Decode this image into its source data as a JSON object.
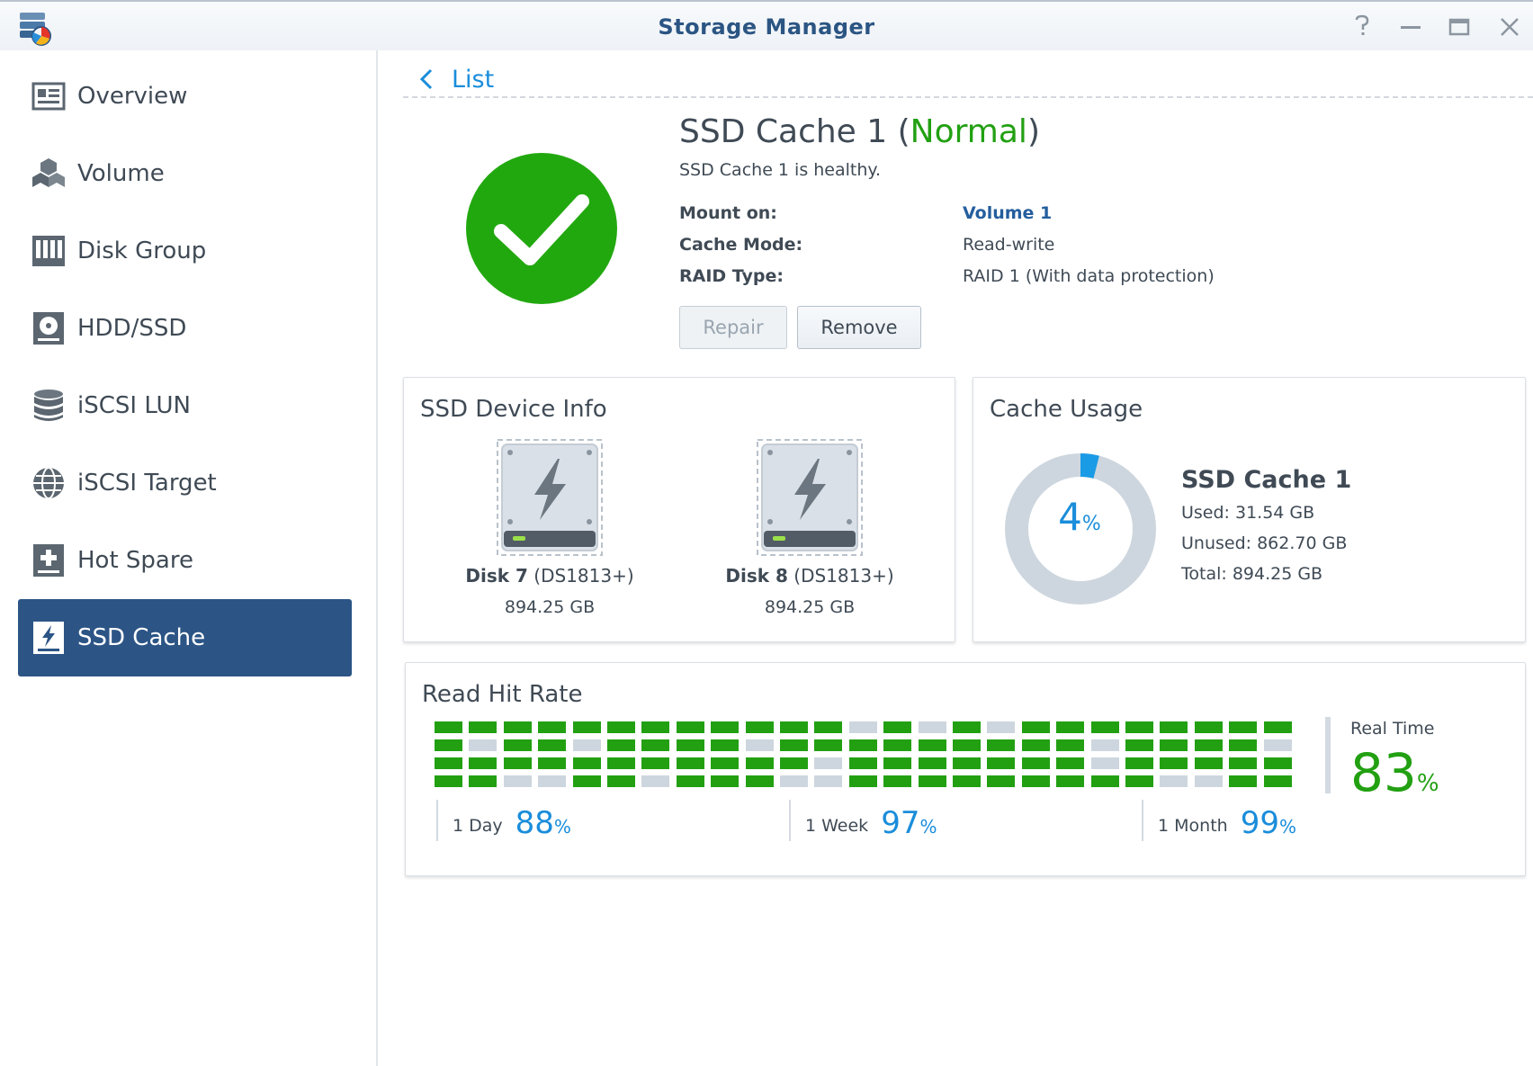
{
  "window": {
    "title": "Storage Manager"
  },
  "sidebar": {
    "items": [
      {
        "label": "Overview",
        "icon": "overview-icon"
      },
      {
        "label": "Volume",
        "icon": "volume-icon"
      },
      {
        "label": "Disk Group",
        "icon": "disk-group-icon"
      },
      {
        "label": "HDD/SSD",
        "icon": "hdd-ssd-icon"
      },
      {
        "label": "iSCSI LUN",
        "icon": "iscsi-lun-icon"
      },
      {
        "label": "iSCSI Target",
        "icon": "iscsi-target-icon"
      },
      {
        "label": "Hot Spare",
        "icon": "hot-spare-icon"
      },
      {
        "label": "SSD Cache",
        "icon": "ssd-cache-icon",
        "active": true
      }
    ]
  },
  "header": {
    "back_label": "List"
  },
  "cache": {
    "name": "SSD Cache 1",
    "open_paren": "(",
    "status": "Normal",
    "close_paren": ")",
    "health_text": "SSD Cache 1 is healthy.",
    "mount_label": "Mount on:",
    "mount_value": "Volume 1",
    "mode_label": "Cache Mode:",
    "mode_value": "Read-write",
    "raid_label": "RAID Type:",
    "raid_value": "RAID 1 (With data protection)",
    "repair_label": "Repair",
    "remove_label": "Remove"
  },
  "device_info": {
    "title": "SSD Device Info",
    "disks": [
      {
        "name": "Disk 7",
        "model": "(DS1813+)",
        "size": "894.25 GB"
      },
      {
        "name": "Disk 8",
        "model": "(DS1813+)",
        "size": "894.25 GB"
      }
    ]
  },
  "usage": {
    "title": "Cache Usage",
    "name": "SSD Cache 1",
    "percent": "4",
    "percent_unit": "%",
    "used": "Used: 31.54 GB",
    "unused": "Unused: 862.70 GB",
    "total": "Total: 894.25 GB"
  },
  "hit_rate": {
    "title": "Read Hit Rate",
    "day_label": "1 Day",
    "day_value": "88",
    "week_label": "1 Week",
    "week_value": "97",
    "month_label": "1 Month",
    "month_value": "99",
    "unit": "%",
    "realtime_label": "Real Time",
    "realtime_value": "83",
    "grid": [
      [
        1,
        1,
        1,
        1,
        1,
        1,
        1,
        1,
        1,
        1,
        1,
        1,
        0,
        1,
        0,
        1,
        0,
        1,
        1,
        1,
        1,
        1,
        1,
        1,
        1
      ],
      [
        1,
        0,
        1,
        1,
        0,
        1,
        1,
        1,
        1,
        0,
        1,
        1,
        1,
        1,
        1,
        1,
        1,
        1,
        1,
        0,
        1,
        1,
        1,
        1,
        0
      ],
      [
        1,
        1,
        1,
        1,
        1,
        1,
        1,
        1,
        1,
        1,
        1,
        0,
        1,
        1,
        1,
        1,
        1,
        1,
        1,
        0,
        1,
        1,
        1,
        1,
        1
      ],
      [
        1,
        1,
        0,
        0,
        1,
        1,
        0,
        1,
        1,
        1,
        0,
        0,
        1,
        1,
        1,
        1,
        1,
        1,
        1,
        1,
        1,
        0,
        0,
        1,
        1
      ]
    ]
  },
  "colors": {
    "accent": "#2c5586",
    "healthy": "#22a012",
    "link": "#1a8ddb",
    "miss": "#cdd6de"
  }
}
